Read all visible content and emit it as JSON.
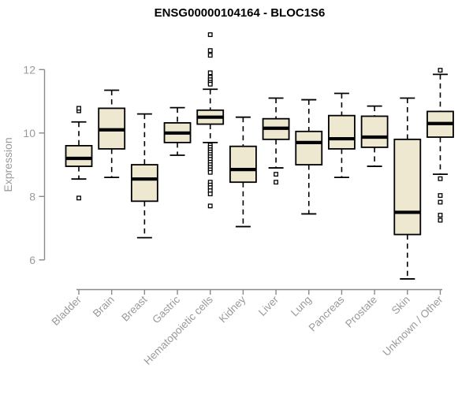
{
  "header": {
    "title": "ENSG00000104164 - BLOC1S6"
  },
  "chart_data": {
    "type": "boxplot",
    "title": "ENSG00000104164 - BLOC1S6",
    "ylabel": "Expression",
    "xlabel": "",
    "yticks": [
      6,
      8,
      10,
      12
    ],
    "ylim": [
      5.1,
      13.4
    ],
    "grid": false,
    "legend": false,
    "colors": {
      "box_fill": "#EDE8CF",
      "box_stroke": "#000000",
      "median": "#000000",
      "whisker": "#000000",
      "axis": "#8a8a8a",
      "tick_labels": "#9a9a9a",
      "title": "#000000",
      "background": "#FFFFFF"
    },
    "categories": [
      "Bladder",
      "Brain",
      "Breast",
      "Gastric",
      "Hematopoietic cells",
      "Kidney",
      "Liver",
      "Lung",
      "Pancreas",
      "Prostate",
      "Skin",
      "Unknown / Other"
    ],
    "boxes": [
      {
        "category": "Bladder",
        "whisker_low": 8.55,
        "q1": 8.95,
        "median": 9.2,
        "q3": 9.6,
        "whisker_high": 10.35,
        "outliers": [
          7.95,
          10.7,
          10.78
        ]
      },
      {
        "category": "Brain",
        "whisker_low": 8.6,
        "q1": 9.5,
        "median": 10.1,
        "q3": 10.78,
        "whisker_high": 11.35,
        "outliers": []
      },
      {
        "category": "Breast",
        "whisker_low": 6.7,
        "q1": 7.85,
        "median": 8.55,
        "q3": 9.0,
        "whisker_high": 10.6,
        "outliers": []
      },
      {
        "category": "Gastric",
        "whisker_low": 9.3,
        "q1": 9.7,
        "median": 10.0,
        "q3": 10.32,
        "whisker_high": 10.8,
        "outliers": []
      },
      {
        "category": "Hematopoietic cells",
        "whisker_low": 9.7,
        "q1": 10.28,
        "median": 10.5,
        "q3": 10.72,
        "whisker_high": 11.38,
        "outliers": [
          13.1,
          12.6,
          12.45,
          11.9,
          11.76,
          11.68,
          11.6,
          11.54,
          9.62,
          9.55,
          9.47,
          9.4,
          9.32,
          9.25,
          9.17,
          9.08,
          9.0,
          8.92,
          8.84,
          8.76,
          8.45,
          8.36,
          8.28,
          8.18,
          8.08,
          7.7
        ]
      },
      {
        "category": "Kidney",
        "whisker_low": 7.05,
        "q1": 8.45,
        "median": 8.85,
        "q3": 9.58,
        "whisker_high": 10.5,
        "outliers": []
      },
      {
        "category": "Liver",
        "whisker_low": 8.9,
        "q1": 9.8,
        "median": 10.15,
        "q3": 10.45,
        "whisker_high": 11.1,
        "outliers": [
          8.7,
          8.45
        ]
      },
      {
        "category": "Lung",
        "whisker_low": 7.45,
        "q1": 9.0,
        "median": 9.7,
        "q3": 10.05,
        "whisker_high": 11.05,
        "outliers": []
      },
      {
        "category": "Pancreas",
        "whisker_low": 8.6,
        "q1": 9.5,
        "median": 9.82,
        "q3": 10.55,
        "whisker_high": 11.25,
        "outliers": []
      },
      {
        "category": "Prostate",
        "whisker_low": 8.95,
        "q1": 9.55,
        "median": 9.87,
        "q3": 10.53,
        "whisker_high": 10.85,
        "outliers": []
      },
      {
        "category": "Skin",
        "whisker_low": 5.4,
        "q1": 6.8,
        "median": 7.5,
        "q3": 9.8,
        "whisker_high": 11.1,
        "outliers": []
      },
      {
        "category": "Unknown / Other",
        "whisker_low": 8.7,
        "q1": 9.87,
        "median": 10.3,
        "q3": 10.68,
        "whisker_high": 11.85,
        "outliers": [
          11.98,
          8.56,
          8.03,
          7.82,
          7.41,
          7.25
        ]
      }
    ]
  }
}
